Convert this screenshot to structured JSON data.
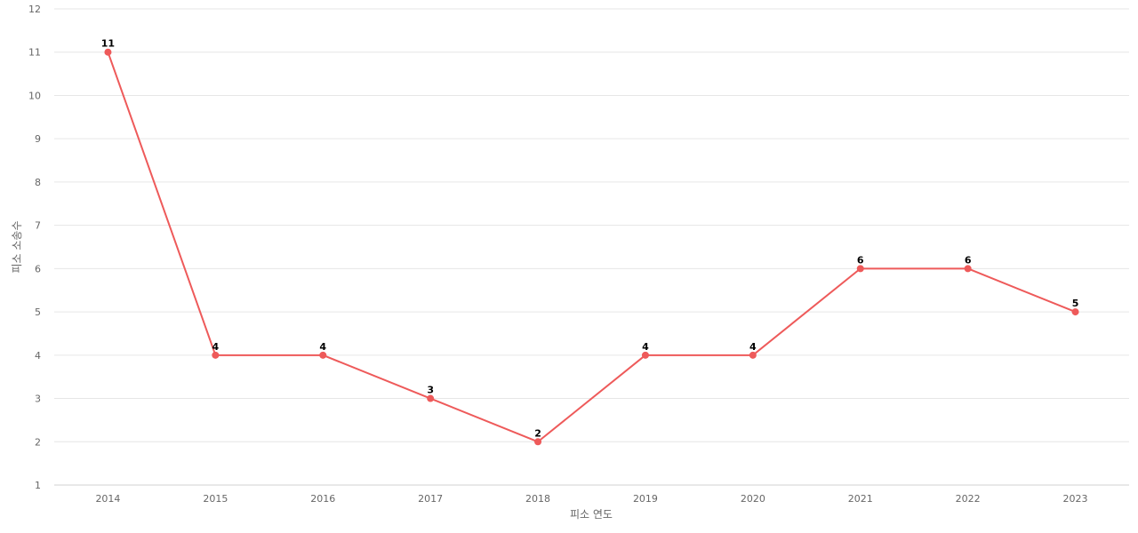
{
  "chart_data": {
    "type": "line",
    "title": "",
    "xlabel": "피소 연도",
    "ylabel": "피소 소송수",
    "categories": [
      "2014",
      "2015",
      "2016",
      "2017",
      "2018",
      "2019",
      "2020",
      "2021",
      "2022",
      "2023"
    ],
    "series": [
      {
        "values": [
          11,
          4,
          4,
          3,
          2,
          4,
          4,
          6,
          6,
          5
        ],
        "color": "#ee5a5a"
      }
    ],
    "ylim": [
      1,
      12
    ],
    "yticks": [
      "1",
      "2",
      "3",
      "4",
      "5",
      "6",
      "7",
      "8",
      "9",
      "10",
      "11",
      "12"
    ],
    "grid": true,
    "legend": "none",
    "data_labels": true
  }
}
